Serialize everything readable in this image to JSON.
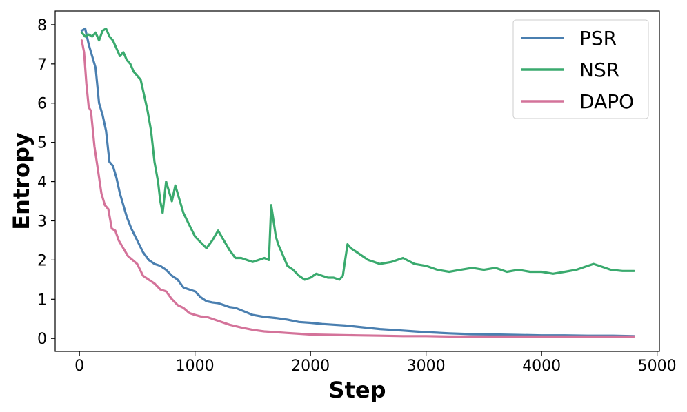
{
  "chart_data": {
    "type": "line",
    "xlabel": "Step",
    "ylabel": "Entropy",
    "xlim": [
      -210,
      5020
    ],
    "ylim": [
      -0.33,
      8.35
    ],
    "xticks": [
      0,
      1000,
      2000,
      3000,
      4000,
      5000
    ],
    "yticks": [
      0,
      1,
      2,
      3,
      4,
      5,
      6,
      7,
      8
    ],
    "grid": false,
    "legend": "top-right",
    "series": [
      {
        "name": "PSR",
        "color": "#4a7fb0",
        "x": [
          20,
          50,
          80,
          110,
          140,
          170,
          200,
          230,
          260,
          290,
          320,
          350,
          380,
          410,
          450,
          500,
          550,
          600,
          650,
          700,
          750,
          800,
          850,
          900,
          950,
          1000,
          1050,
          1100,
          1150,
          1200,
          1250,
          1300,
          1350,
          1400,
          1500,
          1600,
          1700,
          1800,
          1900,
          2000,
          2100,
          2200,
          2300,
          2400,
          2500,
          2600,
          2700,
          2800,
          2900,
          3000,
          3200,
          3400,
          3600,
          3800,
          4000,
          4200,
          4400,
          4600,
          4800
        ],
        "y": [
          7.85,
          7.9,
          7.5,
          7.2,
          6.9,
          6.0,
          5.7,
          5.3,
          4.5,
          4.4,
          4.1,
          3.7,
          3.4,
          3.1,
          2.8,
          2.5,
          2.2,
          2.0,
          1.9,
          1.85,
          1.75,
          1.6,
          1.5,
          1.3,
          1.25,
          1.2,
          1.05,
          0.95,
          0.92,
          0.9,
          0.85,
          0.8,
          0.78,
          0.72,
          0.6,
          0.55,
          0.52,
          0.48,
          0.42,
          0.4,
          0.37,
          0.35,
          0.33,
          0.3,
          0.27,
          0.24,
          0.22,
          0.2,
          0.18,
          0.16,
          0.13,
          0.11,
          0.1,
          0.09,
          0.08,
          0.08,
          0.07,
          0.07,
          0.06
        ]
      },
      {
        "name": "NSR",
        "color": "#3aaa6e",
        "x": [
          20,
          50,
          80,
          110,
          140,
          170,
          200,
          230,
          260,
          290,
          320,
          350,
          380,
          410,
          440,
          470,
          500,
          530,
          560,
          590,
          620,
          650,
          680,
          700,
          720,
          750,
          780,
          800,
          830,
          860,
          900,
          950,
          1000,
          1050,
          1100,
          1150,
          1200,
          1250,
          1300,
          1350,
          1400,
          1450,
          1500,
          1550,
          1600,
          1640,
          1660,
          1680,
          1700,
          1720,
          1750,
          1800,
          1850,
          1900,
          1950,
          2000,
          2050,
          2100,
          2150,
          2200,
          2250,
          2280,
          2300,
          2320,
          2350,
          2400,
          2450,
          2500,
          2550,
          2600,
          2700,
          2800,
          2900,
          3000,
          3100,
          3200,
          3300,
          3400,
          3500,
          3600,
          3700,
          3800,
          3900,
          4000,
          4100,
          4200,
          4300,
          4400,
          4450,
          4500,
          4600,
          4700,
          4800
        ],
        "y": [
          7.8,
          7.7,
          7.75,
          7.7,
          7.8,
          7.6,
          7.85,
          7.9,
          7.7,
          7.6,
          7.4,
          7.2,
          7.3,
          7.1,
          7.0,
          6.8,
          6.7,
          6.6,
          6.2,
          5.8,
          5.3,
          4.5,
          4.0,
          3.5,
          3.2,
          4.0,
          3.7,
          3.5,
          3.9,
          3.6,
          3.2,
          2.9,
          2.6,
          2.45,
          2.3,
          2.5,
          2.75,
          2.5,
          2.25,
          2.05,
          2.05,
          2.0,
          1.95,
          2.0,
          2.05,
          2.0,
          3.4,
          3.0,
          2.6,
          2.4,
          2.2,
          1.85,
          1.75,
          1.6,
          1.5,
          1.55,
          1.65,
          1.6,
          1.55,
          1.55,
          1.5,
          1.6,
          2.0,
          2.4,
          2.3,
          2.2,
          2.1,
          2.0,
          1.95,
          1.9,
          1.95,
          2.05,
          1.9,
          1.85,
          1.75,
          1.7,
          1.75,
          1.8,
          1.75,
          1.8,
          1.7,
          1.75,
          1.7,
          1.7,
          1.65,
          1.7,
          1.75,
          1.85,
          1.9,
          1.85,
          1.75,
          1.72,
          1.72
        ]
      },
      {
        "name": "DAPO",
        "color": "#d4739a",
        "x": [
          20,
          40,
          60,
          80,
          100,
          130,
          160,
          190,
          220,
          250,
          280,
          310,
          340,
          380,
          420,
          460,
          500,
          550,
          600,
          650,
          700,
          750,
          800,
          850,
          900,
          950,
          1000,
          1050,
          1100,
          1150,
          1200,
          1300,
          1400,
          1500,
          1600,
          1700,
          1800,
          1900,
          2000,
          2200,
          2400,
          2600,
          2800,
          3000,
          3200,
          3400,
          3600,
          3800,
          4000,
          4200,
          4400,
          4600,
          4800
        ],
        "y": [
          7.6,
          7.3,
          6.5,
          5.9,
          5.8,
          4.9,
          4.3,
          3.7,
          3.4,
          3.3,
          2.8,
          2.75,
          2.5,
          2.3,
          2.1,
          2.0,
          1.9,
          1.6,
          1.5,
          1.4,
          1.25,
          1.2,
          1.0,
          0.85,
          0.78,
          0.65,
          0.6,
          0.56,
          0.55,
          0.5,
          0.45,
          0.35,
          0.28,
          0.22,
          0.18,
          0.16,
          0.14,
          0.12,
          0.1,
          0.09,
          0.08,
          0.07,
          0.06,
          0.06,
          0.05,
          0.05,
          0.05,
          0.05,
          0.05,
          0.05,
          0.05,
          0.05,
          0.05
        ]
      }
    ]
  }
}
